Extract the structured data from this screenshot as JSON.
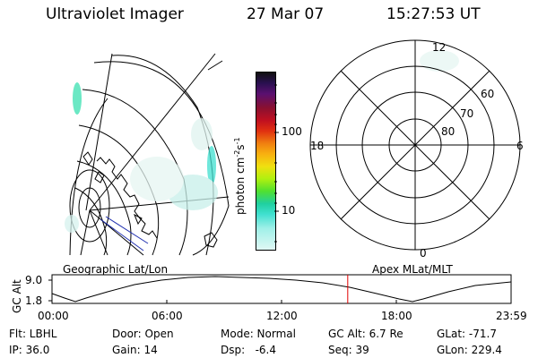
{
  "header": {
    "instrument": "Ultraviolet Imager",
    "date": "27 Mar 07",
    "time": "15:27:53 UT"
  },
  "geo_panel": {
    "label": "Geographic Lat/Lon"
  },
  "apex_panel": {
    "label": "Apex MLat/MLT",
    "mlt_labels": [
      "12",
      "18",
      "6",
      "0"
    ],
    "mlat_labels": [
      "60",
      "70",
      "80"
    ]
  },
  "colorbar": {
    "unit_label": "photon cm",
    "unit_exp1": "-2",
    "unit_mid": "s",
    "unit_exp2": "-1",
    "ticks": [
      "100",
      "10"
    ],
    "colors": [
      "#101010",
      "#2a1050",
      "#5a1070",
      "#8a1030",
      "#c01020",
      "#e03010",
      "#f08010",
      "#f8b010",
      "#f0e010",
      "#b0f010",
      "#50e030",
      "#20d0a0",
      "#40e0d0",
      "#a0f0e8",
      "#e0f8f4"
    ]
  },
  "altitude_strip": {
    "axis_label": "GC Alt",
    "y_ticks": [
      "9.0",
      "1.8"
    ],
    "x_ticks": [
      "00:00",
      "06:00",
      "12:00",
      "18:00",
      "23:59"
    ],
    "current_marker_hours": 15.46,
    "marker_color": "#e00000"
  },
  "footer": {
    "row1": {
      "filter": "Flt: LBHL",
      "door": "Door: Open",
      "mode": "Mode: Normal",
      "gc_alt": "GC Alt: 6.7 Re",
      "glat": "GLat: -71.7"
    },
    "row2": {
      "ip": "IP: 36.0",
      "gain": "Gain: 14",
      "dsp": "Dsp:   -6.4",
      "seq": "Seq: 39",
      "glon": "GLon: 229.4"
    }
  }
}
